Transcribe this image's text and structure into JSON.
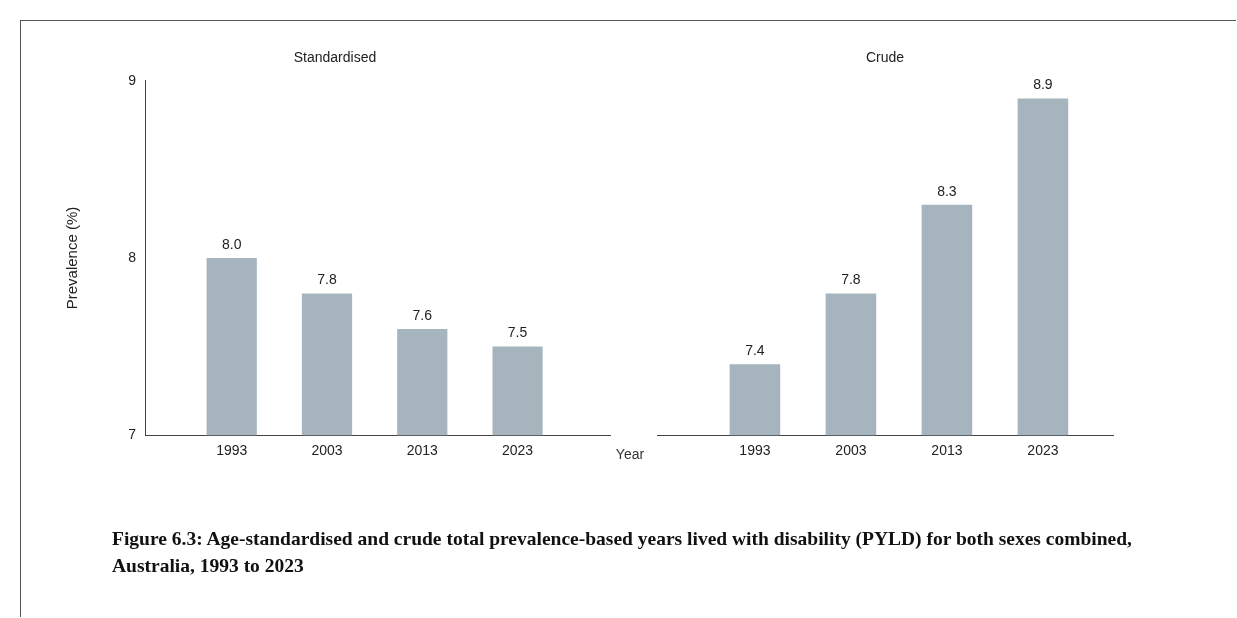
{
  "chart_data": [
    {
      "type": "bar",
      "title": "Standardised",
      "xlabel": "Year",
      "ylabel": "Prevalence (%)",
      "categories": [
        "1993",
        "2003",
        "2013",
        "2023"
      ],
      "values": [
        8.0,
        7.8,
        7.6,
        7.5
      ],
      "value_labels": [
        "8.0",
        "7.8",
        "7.6",
        "7.5"
      ],
      "color": "#a6b5bd",
      "ylim": [
        7,
        9
      ],
      "yticks": [
        7,
        8,
        9
      ],
      "grid": false,
      "legend": false,
      "annotations": [
        "Figure 6.3: Age-standardised and crude total prevalence-based years lived with disability (PYLD) for both sexes combined, Australia, 1993 to 2023"
      ]
    },
    {
      "type": "bar",
      "title": "Crude",
      "categories": [
        "1993",
        "2003",
        "2013",
        "2023"
      ],
      "values": [
        7.4,
        7.8,
        8.3,
        8.9
      ],
      "value_labels": [
        "7.4",
        "7.8",
        "8.3",
        "8.9"
      ],
      "color": "#a6b5bd",
      "ylim": [
        7,
        9
      ],
      "tick_labels": "x",
      "grid": false,
      "legend": false
    }
  ]
}
